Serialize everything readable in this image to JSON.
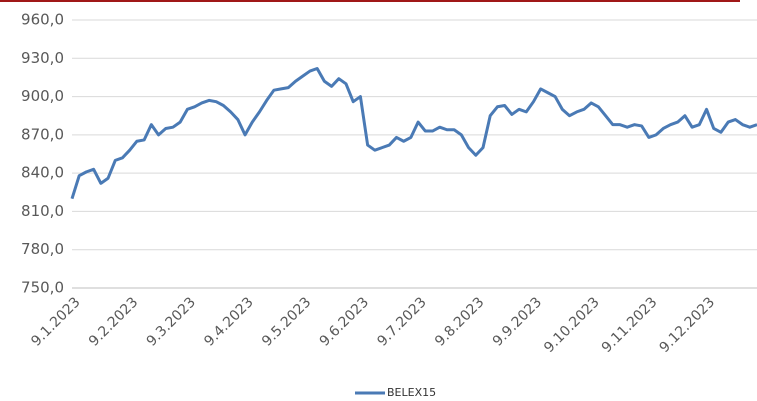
{
  "chart_data": {
    "type": "line",
    "categories": [
      "9.1.2023",
      null,
      null,
      null,
      null,
      null,
      null,
      null,
      "9.2.2023",
      null,
      null,
      null,
      null,
      null,
      null,
      null,
      "9.3.2023",
      null,
      null,
      null,
      null,
      null,
      null,
      null,
      "9.4.2023",
      null,
      null,
      null,
      null,
      null,
      null,
      null,
      "9.5.2023",
      null,
      null,
      null,
      null,
      null,
      null,
      null,
      "9.6.2023",
      null,
      null,
      null,
      null,
      null,
      null,
      null,
      "9.7.2023",
      null,
      null,
      null,
      null,
      null,
      null,
      null,
      "9.8.2023",
      null,
      null,
      null,
      null,
      null,
      null,
      null,
      "9.9.2023",
      null,
      null,
      null,
      null,
      null,
      null,
      null,
      "9.10.2023",
      null,
      null,
      null,
      null,
      null,
      null,
      null,
      "9.11.2023",
      null,
      null,
      null,
      null,
      null,
      null,
      null,
      "9.12.2023",
      null,
      null,
      null,
      null,
      null,
      null,
      null
    ],
    "series": [
      {
        "name": "BELEX15",
        "color": "#4a7ab5",
        "values": [
          820,
          838,
          841,
          843,
          832,
          836,
          850,
          852,
          858,
          865,
          866,
          878,
          870,
          875,
          876,
          880,
          890,
          892,
          895,
          897,
          896,
          893,
          888,
          882,
          870,
          880,
          888,
          897,
          905,
          906,
          907,
          912,
          916,
          920,
          922,
          912,
          908,
          914,
          910,
          896,
          900,
          862,
          858,
          860,
          862,
          868,
          865,
          868,
          880,
          873,
          873,
          876,
          874,
          874,
          870,
          860,
          854,
          860,
          885,
          892,
          893,
          886,
          890,
          888,
          896,
          906,
          903,
          900,
          890,
          885,
          888,
          890,
          895,
          892,
          885,
          878,
          878,
          876,
          878,
          877,
          868,
          870,
          875,
          878,
          880,
          885,
          876,
          878,
          890,
          875,
          872,
          880,
          882,
          878,
          876,
          878
        ]
      }
    ],
    "ylim": [
      750,
      960
    ],
    "yticks": [
      {
        "value": 750,
        "label": "750,0"
      },
      {
        "value": 780,
        "label": "780,0"
      },
      {
        "value": 810,
        "label": "810,0"
      },
      {
        "value": 840,
        "label": "840,0"
      },
      {
        "value": 870,
        "label": "870,0"
      },
      {
        "value": 900,
        "label": "900,0"
      },
      {
        "value": 930,
        "label": "930,0"
      },
      {
        "value": 960,
        "label": "960,0"
      }
    ],
    "grid": true,
    "legend": "bottom"
  }
}
